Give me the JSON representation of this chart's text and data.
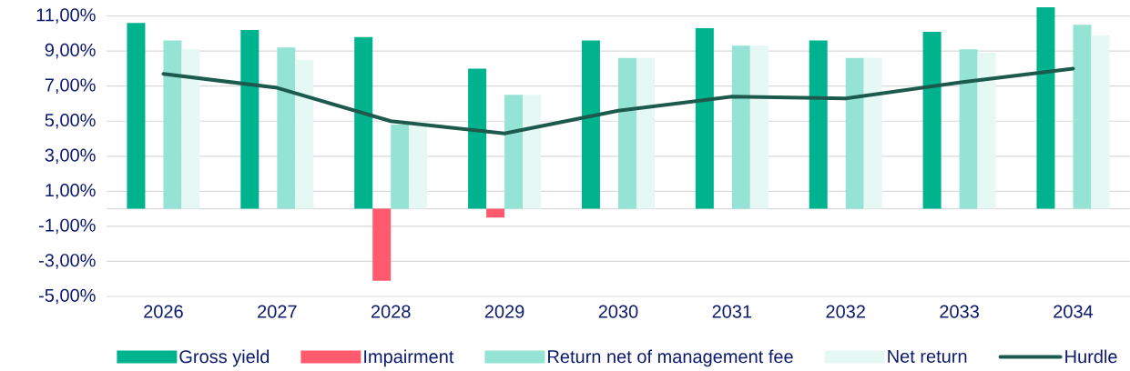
{
  "chart_data": {
    "type": "bar",
    "categories": [
      "2026",
      "2027",
      "2028",
      "2029",
      "2030",
      "2031",
      "2032",
      "2033",
      "2034"
    ],
    "series": [
      {
        "name": "Gross yield",
        "color": "#00b38f",
        "values": [
          10.6,
          10.2,
          9.8,
          8.0,
          9.6,
          10.3,
          9.6,
          10.1,
          11.5
        ]
      },
      {
        "name": "Impairment",
        "color": "#ff5a6e",
        "values": [
          0,
          0,
          -4.1,
          -0.5,
          0,
          0,
          0,
          0,
          0
        ]
      },
      {
        "name": "Return net of management fee",
        "color": "#95e3d4",
        "values": [
          9.6,
          9.2,
          4.8,
          6.5,
          8.6,
          9.3,
          8.6,
          9.1,
          10.5
        ]
      },
      {
        "name": "Net return",
        "color": "#e6f8f3",
        "values": [
          9.1,
          8.5,
          4.7,
          6.5,
          8.6,
          9.3,
          8.6,
          8.9,
          9.9
        ]
      },
      {
        "name": "Hurdle",
        "color": "#1d5a4e",
        "type": "line",
        "line_style": "solid",
        "values": [
          7.7,
          6.9,
          5.0,
          4.3,
          5.6,
          6.4,
          6.3,
          7.2,
          8.0
        ]
      }
    ],
    "ylim": [
      -5,
      11.6
    ],
    "yticks": [
      {
        "value": -5,
        "label": "-5,00%"
      },
      {
        "value": -3,
        "label": "-3,00%"
      },
      {
        "value": -1,
        "label": "-1,00%"
      },
      {
        "value": 1,
        "label": "1,00%"
      },
      {
        "value": 3,
        "label": "3,00%"
      },
      {
        "value": 5,
        "label": "5,00%"
      },
      {
        "value": 7,
        "label": "7,00%"
      },
      {
        "value": 9,
        "label": "9,00%"
      },
      {
        "value": 11,
        "label": "11,00%"
      }
    ],
    "grid": "y",
    "legend": "bottom"
  }
}
